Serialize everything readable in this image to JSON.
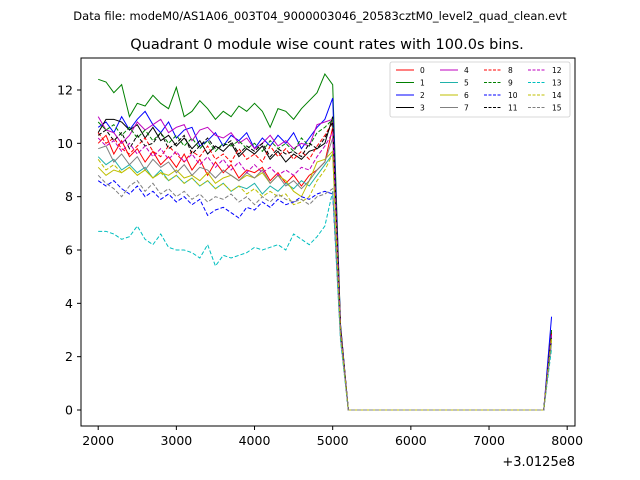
{
  "header": {
    "suptitle": "Data file: modeM0/AS1A06_003T04_9000003046_20583cztM0_level2_quad_clean.evt"
  },
  "chart_data": {
    "type": "line",
    "title": "Quadrant 0 module wise count rates with 100.0s bins.",
    "xlabel": "",
    "ylabel": "",
    "x_offset_label": "+3.0125e8",
    "xlim": [
      1780,
      8100
    ],
    "ylim": [
      -0.6,
      13.2
    ],
    "xticks": [
      2000,
      3000,
      4000,
      5000,
      6000,
      7000,
      8000
    ],
    "yticks": [
      0,
      2,
      4,
      6,
      8,
      10,
      12
    ],
    "grid": false,
    "legend": {
      "placement": "top-right",
      "columns": 4
    },
    "x": [
      2000,
      2100,
      2200,
      2300,
      2400,
      2500,
      2600,
      2700,
      2800,
      2900,
      3000,
      3100,
      3200,
      3300,
      3400,
      3500,
      3600,
      3700,
      3800,
      3900,
      4000,
      4100,
      4200,
      4300,
      4400,
      4500,
      4600,
      4700,
      4800,
      4900,
      5000,
      5100,
      5200,
      5300,
      5400,
      5500,
      5600,
      5700,
      5800,
      5900,
      6000,
      6100,
      6200,
      6300,
      6400,
      6500,
      6600,
      6700,
      6800,
      6900,
      7000,
      7100,
      7200,
      7300,
      7400,
      7500,
      7600,
      7700,
      7800
    ],
    "series": [
      {
        "name": "0",
        "color": "#ff0000",
        "dash": "solid",
        "values": [
          10.0,
          10.3,
          9.6,
          10.1,
          9.5,
          9.8,
          9.3,
          9.7,
          9.2,
          9.5,
          9.1,
          9.6,
          9.0,
          9.4,
          8.8,
          9.3,
          8.9,
          9.2,
          8.7,
          9.0,
          8.9,
          9.1,
          8.6,
          8.9,
          8.5,
          8.8,
          8.4,
          8.8,
          9.0,
          9.3,
          10.6,
          3.0,
          0,
          0,
          0,
          0,
          0,
          0,
          0,
          0,
          0,
          0,
          0,
          0,
          0,
          0,
          0,
          0,
          0,
          0,
          0,
          0,
          0,
          0,
          0,
          0,
          0,
          0,
          3.0
        ]
      },
      {
        "name": "1",
        "color": "#008000",
        "dash": "solid",
        "values": [
          12.4,
          12.3,
          11.9,
          12.2,
          11.0,
          11.5,
          11.4,
          11.8,
          11.5,
          11.3,
          12.1,
          11.0,
          11.2,
          11.6,
          11.3,
          10.9,
          11.2,
          11.0,
          11.4,
          11.2,
          11.5,
          11.2,
          10.6,
          11.3,
          11.2,
          10.9,
          11.3,
          11.6,
          11.9,
          12.6,
          12.2,
          3.2,
          0,
          0,
          0,
          0,
          0,
          0,
          0,
          0,
          0,
          0,
          0,
          0,
          0,
          0,
          0,
          0,
          0,
          0,
          0,
          0,
          0,
          0,
          0,
          0,
          0,
          0,
          3.0
        ]
      },
      {
        "name": "2",
        "color": "#0000ff",
        "dash": "solid",
        "values": [
          10.6,
          10.8,
          10.4,
          11.0,
          10.5,
          10.9,
          11.2,
          10.7,
          10.4,
          10.8,
          10.2,
          10.5,
          10.6,
          9.9,
          10.1,
          10.4,
          9.9,
          10.3,
          10.1,
          10.4,
          9.8,
          10.2,
          9.9,
          10.3,
          10.0,
          10.4,
          9.8,
          10.2,
          10.6,
          10.9,
          11.7,
          3.2,
          0,
          0,
          0,
          0,
          0,
          0,
          0,
          0,
          0,
          0,
          0,
          0,
          0,
          0,
          0,
          0,
          0,
          0,
          0,
          0,
          0,
          0,
          0,
          0,
          0,
          0,
          3.5
        ]
      },
      {
        "name": "3",
        "color": "#000000",
        "dash": "solid",
        "values": [
          10.4,
          10.9,
          10.9,
          10.8,
          10.5,
          10.7,
          10.2,
          10.6,
          10.1,
          10.3,
          9.9,
          10.2,
          9.8,
          10.1,
          9.6,
          9.9,
          9.7,
          10.0,
          9.5,
          9.8,
          9.6,
          9.9,
          9.4,
          9.7,
          9.3,
          9.6,
          9.4,
          9.7,
          9.8,
          10.0,
          11.0,
          3.1,
          0,
          0,
          0,
          0,
          0,
          0,
          0,
          0,
          0,
          0,
          0,
          0,
          0,
          0,
          0,
          0,
          0,
          0,
          0,
          0,
          0,
          0,
          0,
          0,
          0,
          0,
          2.9
        ]
      },
      {
        "name": "4",
        "color": "#bf00bf",
        "dash": "solid",
        "values": [
          11.0,
          10.5,
          10.4,
          10.0,
          10.3,
          10.8,
          10.5,
          10.7,
          10.9,
          10.4,
          10.6,
          10.7,
          10.1,
          10.5,
          10.6,
          10.3,
          10.2,
          10.4,
          10.0,
          10.2,
          9.8,
          10.0,
          10.3,
          9.9,
          10.1,
          9.8,
          10.0,
          9.9,
          10.7,
          10.8,
          10.9,
          3.0,
          0,
          0,
          0,
          0,
          0,
          0,
          0,
          0,
          0,
          0,
          0,
          0,
          0,
          0,
          0,
          0,
          0,
          0,
          0,
          0,
          0,
          0,
          0,
          0,
          0,
          0,
          2.8
        ]
      },
      {
        "name": "5",
        "color": "#20b2aa",
        "dash": "solid",
        "values": [
          9.5,
          9.2,
          9.4,
          9.0,
          9.2,
          8.9,
          9.1,
          8.7,
          9.0,
          8.6,
          8.8,
          8.5,
          8.7,
          8.4,
          8.6,
          8.3,
          8.5,
          8.2,
          8.4,
          8.3,
          8.5,
          8.1,
          8.4,
          8.2,
          8.5,
          8.3,
          8.6,
          8.4,
          8.8,
          9.2,
          9.6,
          2.9,
          0,
          0,
          0,
          0,
          0,
          0,
          0,
          0,
          0,
          0,
          0,
          0,
          0,
          0,
          0,
          0,
          0,
          0,
          0,
          0,
          0,
          0,
          0,
          0,
          0,
          0,
          2.7
        ]
      },
      {
        "name": "6",
        "color": "#bfbf00",
        "dash": "solid",
        "values": [
          9.1,
          8.8,
          9.0,
          8.9,
          9.1,
          8.8,
          9.0,
          8.7,
          8.9,
          8.8,
          9.0,
          8.7,
          8.8,
          8.6,
          8.9,
          8.5,
          8.7,
          8.8,
          8.6,
          8.8,
          8.7,
          8.9,
          8.5,
          8.8,
          8.6,
          8.2,
          8.0,
          8.6,
          9.3,
          9.4,
          9.7,
          2.9,
          0,
          0,
          0,
          0,
          0,
          0,
          0,
          0,
          0,
          0,
          0,
          0,
          0,
          0,
          0,
          0,
          0,
          0,
          0,
          0,
          0,
          0,
          0,
          0,
          0,
          0,
          2.6
        ]
      },
      {
        "name": "7",
        "color": "#808080",
        "dash": "solid",
        "values": [
          9.8,
          9.9,
          9.3,
          9.6,
          9.2,
          9.5,
          9.0,
          9.4,
          9.1,
          9.3,
          8.9,
          9.2,
          8.8,
          9.1,
          9.0,
          8.7,
          9.0,
          8.8,
          8.6,
          8.9,
          8.7,
          9.0,
          8.5,
          8.8,
          8.4,
          8.6,
          8.3,
          8.6,
          9.0,
          9.3,
          10.2,
          3.0,
          0,
          0,
          0,
          0,
          0,
          0,
          0,
          0,
          0,
          0,
          0,
          0,
          0,
          0,
          0,
          0,
          0,
          0,
          0,
          0,
          0,
          0,
          0,
          0,
          0,
          0,
          2.8
        ]
      },
      {
        "name": "8",
        "color": "#ff0000",
        "dash": "dashed",
        "values": [
          10.4,
          10.0,
          10.2,
          9.8,
          9.6,
          9.9,
          10.2,
          9.7,
          9.5,
          9.9,
          9.6,
          9.3,
          9.7,
          9.5,
          9.9,
          9.4,
          9.6,
          9.3,
          9.8,
          9.4,
          9.6,
          9.3,
          9.9,
          9.5,
          9.8,
          9.4,
          9.7,
          9.4,
          9.9,
          10.3,
          10.8,
          3.1,
          0,
          0,
          0,
          0,
          0,
          0,
          0,
          0,
          0,
          0,
          0,
          0,
          0,
          0,
          0,
          0,
          0,
          0,
          0,
          0,
          0,
          0,
          0,
          0,
          0,
          0,
          2.9
        ]
      },
      {
        "name": "9",
        "color": "#008000",
        "dash": "dashed",
        "values": [
          10.8,
          10.5,
          10.7,
          10.3,
          10.6,
          10.2,
          10.5,
          10.1,
          10.4,
          10.0,
          10.3,
          9.9,
          10.2,
          9.8,
          10.1,
          9.7,
          10.0,
          9.9,
          10.1,
          9.8,
          10.0,
          9.7,
          10.1,
          9.8,
          10.0,
          9.7,
          10.2,
          9.9,
          10.4,
          10.6,
          10.9,
          3.1,
          0,
          0,
          0,
          0,
          0,
          0,
          0,
          0,
          0,
          0,
          0,
          0,
          0,
          0,
          0,
          0,
          0,
          0,
          0,
          0,
          0,
          0,
          0,
          0,
          0,
          0,
          2.9
        ]
      },
      {
        "name": "10",
        "color": "#0000ff",
        "dash": "dashed",
        "values": [
          8.6,
          8.4,
          8.6,
          8.3,
          8.1,
          8.4,
          8.0,
          8.2,
          7.9,
          8.1,
          7.8,
          8.0,
          7.7,
          7.9,
          7.3,
          7.5,
          7.6,
          7.4,
          7.2,
          7.6,
          7.5,
          7.8,
          7.6,
          7.9,
          7.7,
          7.8,
          8.0,
          7.9,
          8.1,
          8.2,
          8.1,
          2.8,
          0,
          0,
          0,
          0,
          0,
          0,
          0,
          0,
          0,
          0,
          0,
          0,
          0,
          0,
          0,
          0,
          0,
          0,
          0,
          0,
          0,
          0,
          0,
          0,
          0,
          0,
          2.6
        ]
      },
      {
        "name": "11",
        "color": "#000000",
        "dash": "dashed",
        "values": [
          10.3,
          10.5,
          10.1,
          10.4,
          9.8,
          10.3,
          9.9,
          10.0,
          10.4,
          9.8,
          10.0,
          10.3,
          9.6,
          9.9,
          10.2,
          9.8,
          9.9,
          10.1,
          9.6,
          9.9,
          9.7,
          10.0,
          9.5,
          9.8,
          9.6,
          9.7,
          9.5,
          10.0,
          9.8,
          10.2,
          10.8,
          3.0,
          0,
          0,
          0,
          0,
          0,
          0,
          0,
          0,
          0,
          0,
          0,
          0,
          0,
          0,
          0,
          0,
          0,
          0,
          0,
          0,
          0,
          0,
          0,
          0,
          0,
          0,
          2.8
        ]
      },
      {
        "name": "12",
        "color": "#bf00bf",
        "dash": "dashed",
        "values": [
          10.2,
          9.9,
          10.1,
          9.7,
          10.0,
          9.6,
          9.9,
          9.5,
          9.8,
          9.4,
          9.7,
          9.3,
          9.6,
          9.2,
          9.5,
          9.1,
          9.4,
          9.0,
          9.3,
          8.9,
          9.2,
          8.9,
          9.1,
          8.8,
          9.0,
          8.8,
          9.1,
          9.0,
          9.5,
          9.9,
          10.4,
          3.0,
          0,
          0,
          0,
          0,
          0,
          0,
          0,
          0,
          0,
          0,
          0,
          0,
          0,
          0,
          0,
          0,
          0,
          0,
          0,
          0,
          0,
          0,
          0,
          0,
          0,
          0,
          2.8
        ]
      },
      {
        "name": "13",
        "color": "#00bfbf",
        "dash": "dashed",
        "values": [
          6.7,
          6.7,
          6.6,
          6.4,
          6.5,
          6.9,
          6.4,
          6.2,
          6.6,
          6.1,
          6.0,
          6.0,
          5.9,
          5.7,
          6.2,
          5.4,
          5.8,
          5.7,
          5.8,
          5.9,
          6.1,
          6.0,
          6.1,
          6.2,
          6.0,
          6.6,
          6.4,
          6.2,
          6.5,
          6.9,
          8.2,
          2.6,
          0,
          0,
          0,
          0,
          0,
          0,
          0,
          0,
          0,
          0,
          0,
          0,
          0,
          0,
          0,
          0,
          0,
          0,
          0,
          0,
          0,
          0,
          0,
          0,
          0,
          0,
          2.3
        ]
      },
      {
        "name": "14",
        "color": "#bfbf00",
        "dash": "dashed",
        "values": [
          9.4,
          9.0,
          9.2,
          8.9,
          9.1,
          8.8,
          9.0,
          8.7,
          8.9,
          8.6,
          8.8,
          8.5,
          8.7,
          8.4,
          8.6,
          8.3,
          8.5,
          8.2,
          8.4,
          8.1,
          8.3,
          8.0,
          8.2,
          8.0,
          8.1,
          7.7,
          7.8,
          8.0,
          8.6,
          9.0,
          9.6,
          2.9,
          0,
          0,
          0,
          0,
          0,
          0,
          0,
          0,
          0,
          0,
          0,
          0,
          0,
          0,
          0,
          0,
          0,
          0,
          0,
          0,
          0,
          0,
          0,
          0,
          0,
          0,
          2.7
        ]
      },
      {
        "name": "15",
        "color": "#808080",
        "dash": "dashed",
        "values": [
          8.8,
          8.5,
          8.3,
          8.0,
          8.4,
          8.6,
          8.2,
          8.5,
          8.1,
          8.3,
          8.0,
          8.2,
          7.9,
          8.1,
          7.8,
          8.0,
          7.9,
          8.1,
          7.8,
          8.0,
          7.7,
          8.0,
          7.8,
          8.1,
          7.9,
          7.8,
          7.9,
          7.7,
          8.0,
          8.1,
          8.3,
          2.7,
          0,
          0,
          0,
          0,
          0,
          0,
          0,
          0,
          0,
          0,
          0,
          0,
          0,
          0,
          0,
          0,
          0,
          0,
          0,
          0,
          0,
          0,
          0,
          0,
          0,
          0,
          2.5
        ]
      }
    ]
  }
}
